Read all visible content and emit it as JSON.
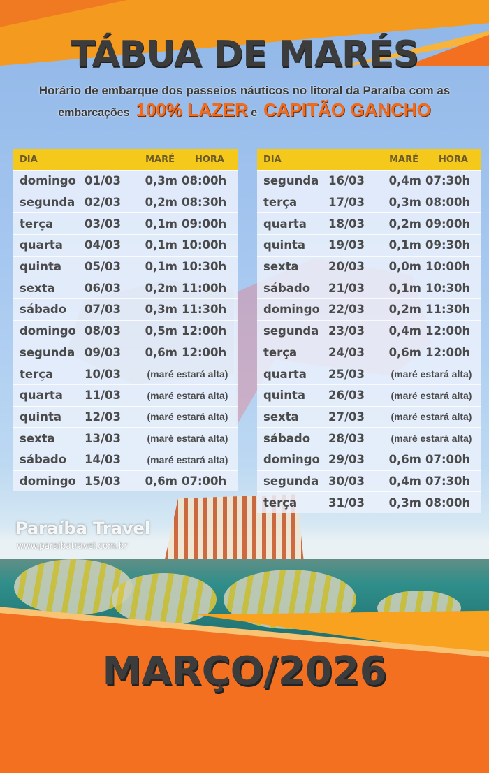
{
  "header": {
    "title": "TÁBUA DE MARÉS",
    "subtitle_line1": "Horário de embarque dos passeios náuticos no litoral da Paraíba com as",
    "subtitle_prefix": "embarcações",
    "brand1": "100% LAZER",
    "connector": "e",
    "brand2": "CAPITÃO GANCHO"
  },
  "columns": {
    "day": "DIA",
    "tide": "MARÉ",
    "time": "HORA"
  },
  "tables": [
    {
      "rows": [
        {
          "day": "domingo",
          "date": "01/03",
          "tide": "0,3m",
          "time": "08:00h"
        },
        {
          "day": "segunda",
          "date": "02/03",
          "tide": "0,2m",
          "time": "08:30h"
        },
        {
          "day": "terça",
          "date": "03/03",
          "tide": "0,1m",
          "time": "09:00h"
        },
        {
          "day": "quarta",
          "date": "04/03",
          "tide": "0,1m",
          "time": "10:00h"
        },
        {
          "day": "quinta",
          "date": "05/03",
          "tide": "0,1m",
          "time": "10:30h"
        },
        {
          "day": "sexta",
          "date": "06/03",
          "tide": "0,2m",
          "time": "11:00h"
        },
        {
          "day": "sábado",
          "date": "07/03",
          "tide": "0,3m",
          "time": "11:30h"
        },
        {
          "day": "domingo",
          "date": "08/03",
          "tide": "0,5m",
          "time": "12:00h"
        },
        {
          "day": "segunda",
          "date": "09/03",
          "tide": "0,6m",
          "time": "12:00h"
        },
        {
          "day": "terça",
          "date": "10/03",
          "note": "(maré estará alta)"
        },
        {
          "day": "quarta",
          "date": "11/03",
          "note": "(maré estará alta)"
        },
        {
          "day": "quinta",
          "date": "12/03",
          "note": "(maré estará alta)"
        },
        {
          "day": "sexta",
          "date": "13/03",
          "note": "(maré estará alta)"
        },
        {
          "day": "sábado",
          "date": "14/03",
          "note": "(maré estará alta)"
        },
        {
          "day": "domingo",
          "date": "15/03",
          "tide": "0,6m",
          "time": "07:00h"
        }
      ]
    },
    {
      "rows": [
        {
          "day": "segunda",
          "date": "16/03",
          "tide": "0,4m",
          "time": "07:30h"
        },
        {
          "day": "terça",
          "date": "17/03",
          "tide": "0,3m",
          "time": "08:00h"
        },
        {
          "day": "quarta",
          "date": "18/03",
          "tide": "0,2m",
          "time": "09:00h"
        },
        {
          "day": "quinta",
          "date": "19/03",
          "tide": "0,1m",
          "time": "09:30h"
        },
        {
          "day": "sexta",
          "date": "20/03",
          "tide": "0,0m",
          "time": "10:00h"
        },
        {
          "day": "sábado",
          "date": "21/03",
          "tide": "0,1m",
          "time": "10:30h"
        },
        {
          "day": "domingo",
          "date": "22/03",
          "tide": "0,2m",
          "time": "11:30h"
        },
        {
          "day": "segunda",
          "date": "23/03",
          "tide": "0,4m",
          "time": "12:00h"
        },
        {
          "day": "terça",
          "date": "24/03",
          "tide": "0,6m",
          "time": "12:00h"
        },
        {
          "day": "quarta",
          "date": "25/03",
          "note": "(maré estará alta)"
        },
        {
          "day": "quinta",
          "date": "26/03",
          "note": "(maré estará alta)"
        },
        {
          "day": "sexta",
          "date": "27/03",
          "note": "(maré estará alta)"
        },
        {
          "day": "sábado",
          "date": "28/03",
          "note": "(maré estará alta)"
        },
        {
          "day": "domingo",
          "date": "29/03",
          "tide": "0,6m",
          "time": "07:00h"
        },
        {
          "day": "segunda",
          "date": "30/03",
          "tide": "0,4m",
          "time": "07:30h"
        },
        {
          "day": "terça",
          "date": "31/03",
          "tide": "0,3m",
          "time": "08:00h"
        }
      ]
    }
  ],
  "watermark": {
    "name": "Paraíba Travel",
    "url": "www.paraibatravel.com.br"
  },
  "footer": {
    "month": "MARÇO/2026"
  },
  "colors": {
    "orange": "#f37021",
    "yellow_header": "#f4c91b",
    "text": "#4a4a4a",
    "sky": "#a7c8f0"
  }
}
